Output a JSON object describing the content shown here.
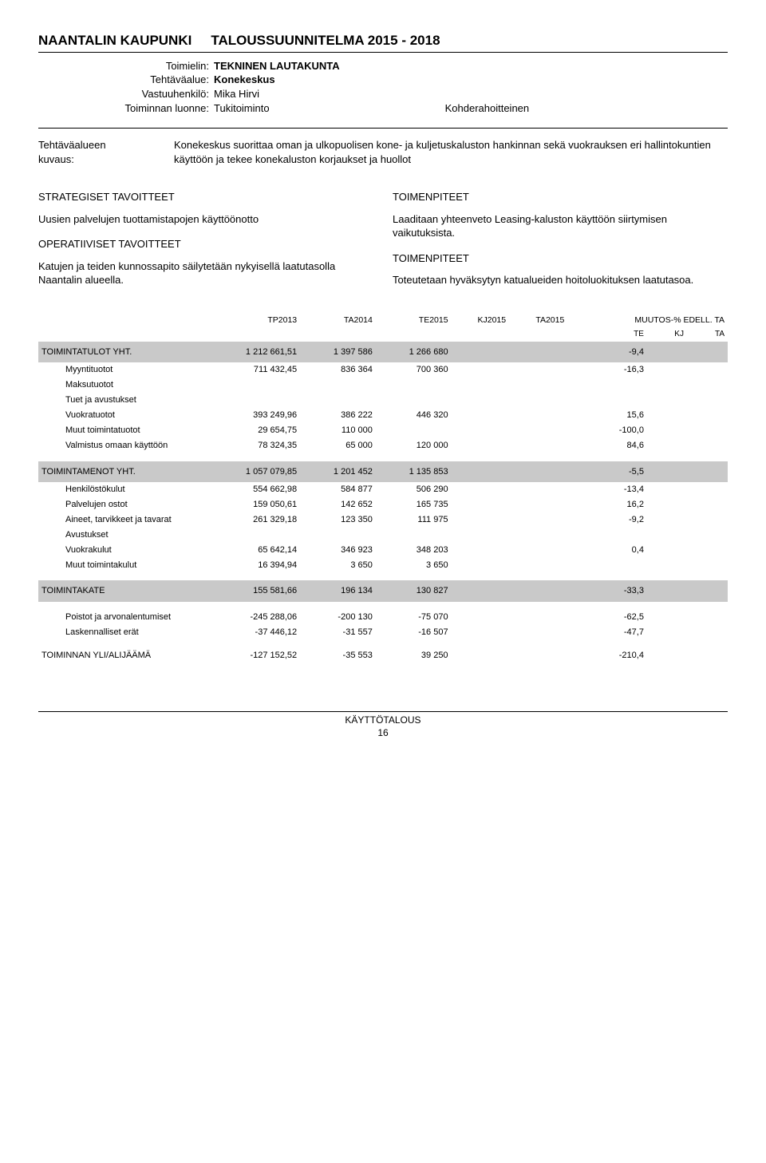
{
  "header": {
    "org": "NAANTALIN KAUPUNKI",
    "title": "TALOUSSUUNNITELMA 2015 - 2018"
  },
  "meta": {
    "labels": {
      "toimielin": "Toimielin:",
      "tehtavaalue": "Tehtäväalue:",
      "vastuuhenkilo": "Vastuuhenkilö:",
      "toiminnan_luonne": "Toiminnan luonne:"
    },
    "values": {
      "toimielin": "TEKNINEN LAUTAKUNTA",
      "tehtavaalue": "Konekeskus",
      "vastuuhenkilo": "Mika Hirvi",
      "toiminnan_luonne": "Tukitoiminto",
      "kohde": "Kohderahoitteinen"
    }
  },
  "desc": {
    "label1": "Tehtäväalueen",
    "label2": "kuvaus:",
    "text": "Konekeskus suorittaa oman ja ulkopuolisen kone- ja kuljetuskaluston hankinnan sekä vuokrauksen eri hallintokuntien käyttöön ja tekee konekaluston korjaukset ja huollot"
  },
  "goals": {
    "strategiset_h": "STRATEGISET TAVOITTEET",
    "toimenpiteet_h": "TOIMENPITEET",
    "strat_left": "Uusien palvelujen tuottamistapojen käyttöönotto",
    "strat_right": "Laaditaan yhteenveto Leasing-kaluston käyttöön siirtymisen vaikutuksista.",
    "operatiiviset_h": "OPERATIIVISET TAVOITTEET",
    "oper_left": "Katujen ja teiden kunnossapito säilytetään nykyisellä laatutasolla Naantalin alueella.",
    "oper_right": "Toteutetaan hyväksytyn katualueiden hoitoluokituksen laatutasoa."
  },
  "table": {
    "columns": [
      "TP2013",
      "TA2014",
      "TE2015",
      "KJ2015",
      "TA2015"
    ],
    "muutos_label": "MUUTOS-% EDELL. TA",
    "muutos_sub": [
      "TE",
      "KJ",
      "TA"
    ],
    "sections": {
      "tulot": {
        "label": "TOIMINTATULOT YHT.",
        "vals": [
          "1 212 661,51",
          "1 397 586",
          "1 266 680",
          "",
          ""
        ],
        "pct": "-9,4",
        "rows": [
          {
            "label": "Myyntituotot",
            "vals": [
              "711 432,45",
              "836 364",
              "700 360",
              "",
              ""
            ],
            "pct": "-16,3"
          },
          {
            "label": "Maksutuotot",
            "vals": [
              "",
              "",
              "",
              "",
              ""
            ],
            "pct": ""
          },
          {
            "label": "Tuet ja avustukset",
            "vals": [
              "",
              "",
              "",
              "",
              ""
            ],
            "pct": ""
          },
          {
            "label": "Vuokratuotot",
            "vals": [
              "393 249,96",
              "386 222",
              "446 320",
              "",
              ""
            ],
            "pct": "15,6"
          },
          {
            "label": "Muut toimintatuotot",
            "vals": [
              "29 654,75",
              "110 000",
              "",
              "",
              ""
            ],
            "pct": "-100,0"
          },
          {
            "label": "Valmistus omaan käyttöön",
            "vals": [
              "78 324,35",
              "65 000",
              "120 000",
              "",
              ""
            ],
            "pct": "84,6"
          }
        ]
      },
      "menot": {
        "label": "TOIMINTAMENOT YHT.",
        "vals": [
          "1 057 079,85",
          "1 201 452",
          "1 135 853",
          "",
          ""
        ],
        "pct": "-5,5",
        "rows": [
          {
            "label": "Henkilöstökulut",
            "vals": [
              "554 662,98",
              "584 877",
              "506 290",
              "",
              ""
            ],
            "pct": "-13,4"
          },
          {
            "label": "Palvelujen ostot",
            "vals": [
              "159 050,61",
              "142 652",
              "165 735",
              "",
              ""
            ],
            "pct": "16,2"
          },
          {
            "label": "Aineet, tarvikkeet ja tavarat",
            "vals": [
              "261 329,18",
              "123 350",
              "111 975",
              "",
              ""
            ],
            "pct": "-9,2"
          },
          {
            "label": "Avustukset",
            "vals": [
              "",
              "",
              "",
              "",
              ""
            ],
            "pct": ""
          },
          {
            "label": "Vuokrakulut",
            "vals": [
              "65 642,14",
              "346 923",
              "348 203",
              "",
              ""
            ],
            "pct": "0,4"
          },
          {
            "label": "Muut toimintakulut",
            "vals": [
              "16 394,94",
              "3 650",
              "3 650",
              "",
              ""
            ],
            "pct": ""
          }
        ]
      },
      "kate": {
        "label": "TOIMINTAKATE",
        "vals": [
          "155 581,66",
          "196 134",
          "130 827",
          "",
          ""
        ],
        "pct": "-33,3"
      },
      "poistot": {
        "rows": [
          {
            "label": "Poistot ja arvonalentumiset",
            "vals": [
              "-245 288,06",
              "-200 130",
              "-75 070",
              "",
              ""
            ],
            "pct": "-62,5"
          },
          {
            "label": "Laskennalliset erät",
            "vals": [
              "-37 446,12",
              "-31 557",
              "-16 507",
              "",
              ""
            ],
            "pct": "-47,7"
          }
        ]
      },
      "yli": {
        "label": "TOIMINNAN YLI/ALIJÄÄMÄ",
        "vals": [
          "-127 152,52",
          "-35 553",
          "39 250",
          "",
          ""
        ],
        "pct": "-210,4"
      }
    }
  },
  "footer": {
    "label": "KÄYTTÖTALOUS",
    "page": "16"
  }
}
